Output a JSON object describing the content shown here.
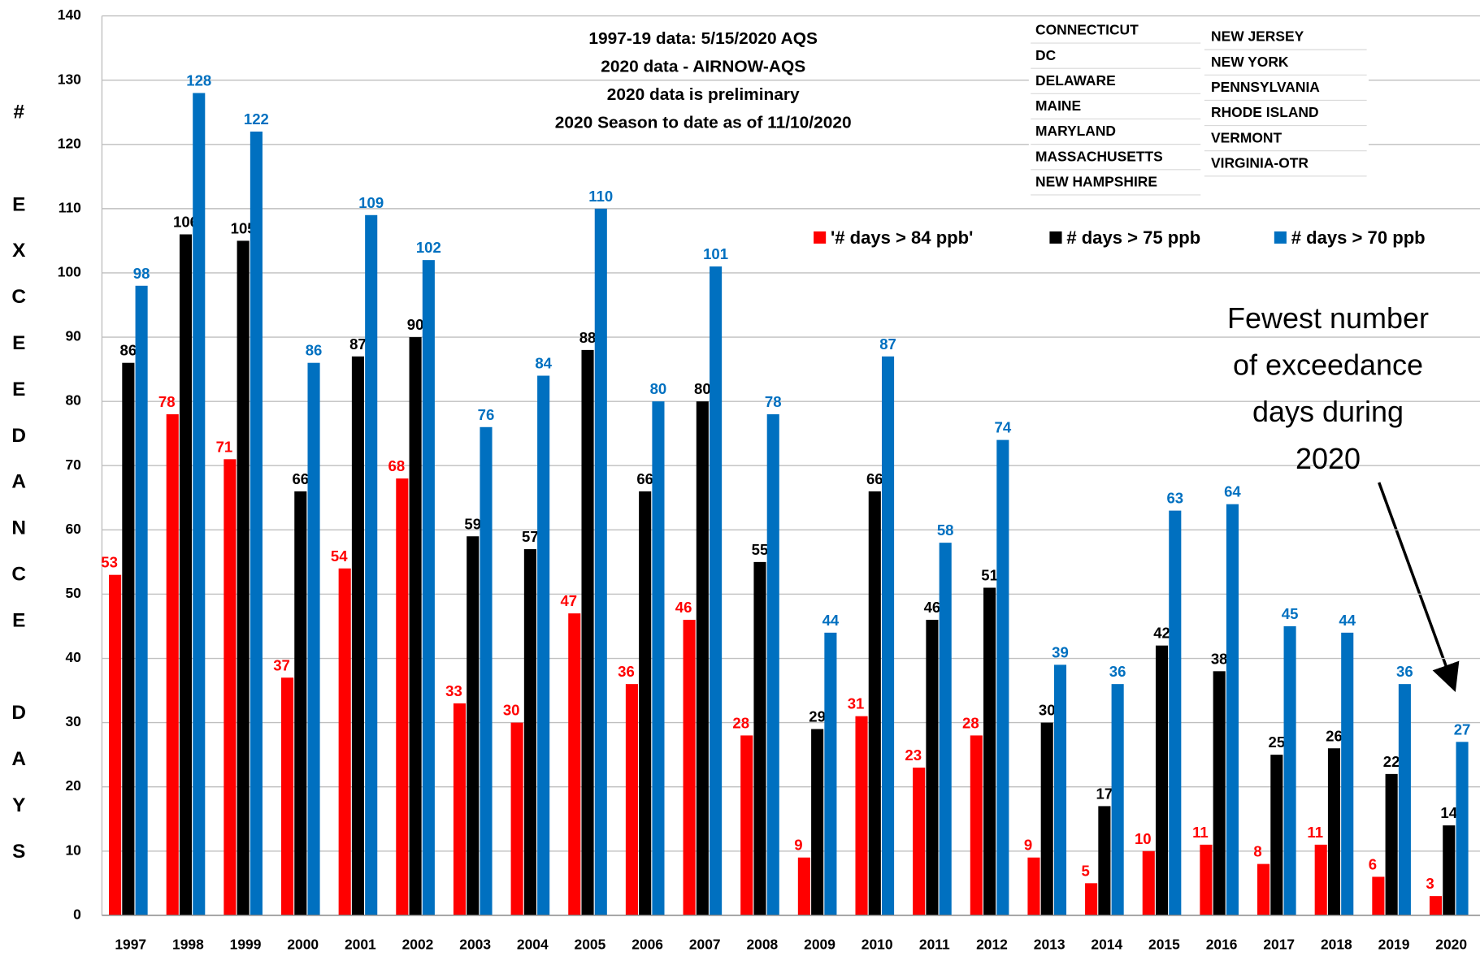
{
  "chart_data": {
    "type": "bar",
    "y_label": "# EXCEEDANCE DAYS",
    "notes": [
      "1997-19 data:  5/15/2020 AQS",
      "2020 data - AIRNOW-AQS",
      "2020 data is preliminary",
      "2020 Season to date as of 11/10/2020"
    ],
    "callout": [
      "Fewest number",
      "of exceedance",
      "days during",
      "2020"
    ],
    "categories": [
      "1997",
      "1998",
      "1999",
      "2000",
      "2001",
      "2002",
      "2003",
      "2004",
      "2005",
      "2006",
      "2007",
      "2008",
      "2009",
      "2010",
      "2011",
      "2012",
      "2013",
      "2014",
      "2015",
      "2016",
      "2017",
      "2018",
      "2019",
      "2020"
    ],
    "series": [
      {
        "name": "'# days > 84 ppb'",
        "color": "#ff0000",
        "values": [
          53,
          78,
          71,
          37,
          54,
          68,
          33,
          30,
          47,
          36,
          46,
          28,
          9,
          31,
          23,
          28,
          9,
          5,
          10,
          11,
          8,
          11,
          6,
          3
        ]
      },
      {
        "name": "# days > 75 ppb",
        "color": "#000000",
        "values": [
          86,
          106,
          105,
          66,
          87,
          90,
          59,
          57,
          88,
          66,
          80,
          55,
          29,
          66,
          46,
          51,
          30,
          17,
          42,
          38,
          25,
          26,
          22,
          14
        ]
      },
      {
        "name": "# days > 70 ppb",
        "color": "#0070c0",
        "values": [
          98,
          128,
          122,
          86,
          109,
          102,
          76,
          84,
          110,
          80,
          101,
          78,
          44,
          87,
          58,
          74,
          39,
          36,
          63,
          64,
          45,
          44,
          36,
          27
        ]
      }
    ],
    "ylim": [
      0,
      140
    ],
    "yticks": [
      0,
      10,
      20,
      30,
      40,
      50,
      60,
      70,
      80,
      90,
      100,
      110,
      120,
      130,
      140
    ],
    "grid": true,
    "legend": "top-right"
  },
  "states_table": {
    "col1": [
      "CONNECTICUT",
      "DC",
      "DELAWARE",
      "MAINE",
      "MARYLAND",
      "MASSACHUSETTS",
      "NEW HAMPSHIRE"
    ],
    "col2": [
      "NEW JERSEY",
      "NEW YORK",
      "PENNSYLVANIA",
      "RHODE ISLAND",
      "VERMONT",
      "VIRGINIA-OTR"
    ]
  }
}
